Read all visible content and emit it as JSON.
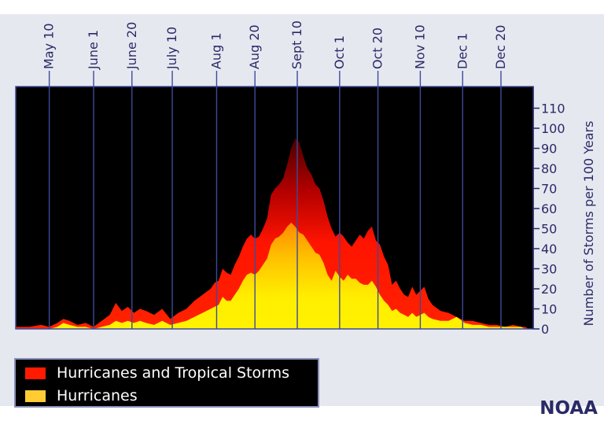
{
  "chart_data": {
    "type": "area",
    "title": "",
    "ylabel": "Number of Storms per 100 Years",
    "ylim": [
      0,
      120
    ],
    "yticks": [
      0,
      10,
      20,
      30,
      40,
      50,
      60,
      70,
      80,
      90,
      100,
      110
    ],
    "date_ticks": [
      {
        "label": "May 10",
        "day": 10
      },
      {
        "label": "June 1",
        "day": 32
      },
      {
        "label": "June 20",
        "day": 51
      },
      {
        "label": "July 10",
        "day": 71
      },
      {
        "label": "Aug 1",
        "day": 93
      },
      {
        "label": "Aug 20",
        "day": 112
      },
      {
        "label": "Sept 10",
        "day": 133
      },
      {
        "label": "Oct 1",
        "day": 154
      },
      {
        "label": "Oct 20",
        "day": 173
      },
      {
        "label": "Nov 10",
        "day": 194
      },
      {
        "label": "Dec 1",
        "day": 215
      },
      {
        "label": "Dec 20",
        "day": 234
      }
    ],
    "xlim": [
      0,
      250
    ],
    "series": [
      {
        "name": "Hurricanes and Tropical Storms",
        "color": "#ff1a00",
        "x": [
          0,
          6,
          10,
          14,
          17,
          20,
          24,
          28,
          32,
          36,
          40,
          43,
          46,
          49,
          52,
          55,
          58,
          62,
          66,
          70,
          74,
          78,
          82,
          86,
          90,
          92,
          94,
          96,
          98,
          100,
          102,
          104,
          106,
          108,
          110,
          112,
          114,
          116,
          118,
          120,
          122,
          124,
          126,
          128,
          130,
          132,
          134,
          136,
          138,
          140,
          142,
          144,
          146,
          148,
          150,
          152,
          154,
          156,
          158,
          160,
          162,
          164,
          166,
          168,
          170,
          172,
          174,
          176,
          178,
          180,
          182,
          184,
          186,
          188,
          190,
          192,
          194,
          196,
          198,
          200,
          204,
          208,
          212,
          216,
          220,
          224,
          228,
          232,
          236,
          240,
          244,
          246,
          248,
          250
        ],
        "values": [
          1,
          2,
          1,
          3,
          5,
          4,
          2,
          3,
          1,
          4,
          7,
          13,
          9,
          11,
          8,
          10,
          9,
          7,
          10,
          5,
          8,
          10,
          14,
          17,
          20,
          23,
          24,
          30,
          28,
          27,
          32,
          36,
          41,
          45,
          47,
          45,
          46,
          50,
          55,
          67,
          70,
          72,
          75,
          82,
          90,
          95,
          93,
          86,
          80,
          77,
          72,
          70,
          64,
          56,
          50,
          46,
          48,
          46,
          43,
          41,
          44,
          47,
          45,
          49,
          51,
          44,
          42,
          36,
          32,
          22,
          24,
          20,
          17,
          16,
          21,
          17,
          19,
          21,
          15,
          12,
          9,
          8,
          6,
          4,
          4,
          3,
          2,
          2,
          1,
          2,
          1,
          1,
          0,
          0
        ]
      },
      {
        "name": "Hurricanes",
        "color": "#ffe000",
        "x": [
          0,
          6,
          10,
          14,
          17,
          20,
          24,
          28,
          32,
          36,
          40,
          43,
          46,
          49,
          52,
          55,
          58,
          62,
          66,
          70,
          74,
          78,
          82,
          86,
          90,
          92,
          94,
          96,
          98,
          100,
          102,
          104,
          106,
          108,
          110,
          112,
          114,
          116,
          118,
          120,
          122,
          124,
          126,
          128,
          130,
          132,
          134,
          136,
          138,
          140,
          142,
          144,
          146,
          148,
          150,
          152,
          154,
          156,
          158,
          160,
          162,
          164,
          166,
          168,
          170,
          172,
          174,
          176,
          178,
          180,
          182,
          184,
          186,
          188,
          190,
          192,
          194,
          196,
          198,
          200,
          204,
          208,
          212,
          216,
          220,
          224,
          228,
          232,
          236,
          240,
          244,
          246,
          248,
          250
        ],
        "values": [
          0,
          0,
          0,
          1,
          3,
          2,
          1,
          1,
          0,
          1,
          2,
          4,
          3,
          4,
          3,
          4,
          3,
          2,
          4,
          2,
          3,
          4,
          6,
          8,
          10,
          11,
          12,
          16,
          14,
          14,
          17,
          20,
          24,
          27,
          28,
          27,
          29,
          32,
          35,
          42,
          45,
          46,
          48,
          51,
          53,
          51,
          48,
          47,
          44,
          41,
          38,
          37,
          33,
          27,
          24,
          29,
          26,
          24,
          27,
          25,
          25,
          23,
          22,
          22,
          24,
          21,
          17,
          14,
          12,
          9,
          10,
          8,
          7,
          6,
          8,
          6,
          7,
          8,
          6,
          5,
          4,
          4,
          6,
          3,
          2,
          2,
          1,
          1,
          1,
          1,
          1,
          0,
          0,
          0
        ]
      }
    ],
    "legend": [
      {
        "label": "Hurricanes and Tropical Storms",
        "color": "#ff1a00"
      },
      {
        "label": "Hurricanes",
        "color": "#ffcc33"
      }
    ]
  },
  "credit": "NOAA"
}
